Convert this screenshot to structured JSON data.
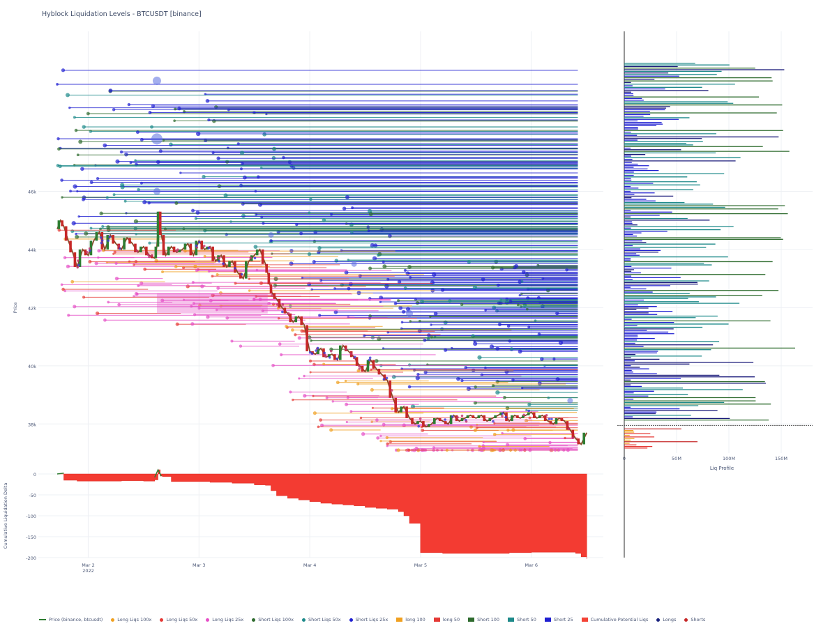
{
  "title": "Hyblock Liquidation Levels - BTCUSDT [binance]",
  "chart_data": [
    {
      "id": "main",
      "type": "line",
      "ylabel": "Price",
      "ylim": [
        37000,
        51500
      ],
      "y_ticks": [
        {
          "v": 38000,
          "label": "38k"
        },
        {
          "v": 40000,
          "label": "40k"
        },
        {
          "v": 42000,
          "label": "42k"
        },
        {
          "v": 44000,
          "label": "44k"
        },
        {
          "v": 46000,
          "label": "46k"
        }
      ],
      "xlim": [
        1.55,
        6.65
      ],
      "x_ticks": [
        {
          "v": 2,
          "label": "Mar 2",
          "sub": "2022"
        },
        {
          "v": 3,
          "label": "Mar 3",
          "sub": ""
        },
        {
          "v": 4,
          "label": "Mar 4",
          "sub": ""
        },
        {
          "v": 5,
          "label": "Mar 5",
          "sub": ""
        },
        {
          "v": 6,
          "label": "Mar 6",
          "sub": ""
        }
      ],
      "price_series": {
        "name": "Price (binance, btcusdt)",
        "x": [
          1.72,
          1.75,
          1.78,
          1.82,
          1.86,
          1.9,
          1.95,
          2.0,
          2.05,
          2.1,
          2.15,
          2.2,
          2.25,
          2.3,
          2.35,
          2.4,
          2.45,
          2.5,
          2.55,
          2.6,
          2.62,
          2.64,
          2.66,
          2.7,
          2.75,
          2.8,
          2.85,
          2.9,
          2.95,
          3.0,
          3.05,
          3.1,
          3.15,
          3.2,
          3.25,
          3.3,
          3.35,
          3.4,
          3.45,
          3.5,
          3.55,
          3.6,
          3.62,
          3.64,
          3.66,
          3.7,
          3.75,
          3.8,
          3.85,
          3.9,
          3.95,
          4.0,
          4.05,
          4.1,
          4.15,
          4.2,
          4.25,
          4.3,
          4.35,
          4.4,
          4.45,
          4.5,
          4.55,
          4.6,
          4.65,
          4.7,
          4.75,
          4.8,
          4.85,
          4.9,
          4.95,
          5.0,
          5.05,
          5.1,
          5.15,
          5.2,
          5.25,
          5.3,
          5.35,
          5.4,
          5.45,
          5.5,
          5.55,
          5.6,
          5.65,
          5.7,
          5.75,
          5.8,
          5.85,
          5.9,
          5.95,
          6.0,
          6.05,
          6.1,
          6.15,
          6.2,
          6.25,
          6.3,
          6.35,
          6.4,
          6.45,
          6.5
        ],
        "y": [
          44700,
          45000,
          44800,
          44300,
          43900,
          43400,
          44000,
          43800,
          44300,
          44600,
          44000,
          44500,
          44200,
          44000,
          44400,
          44200,
          43900,
          44100,
          43800,
          43700,
          44100,
          45300,
          44500,
          43800,
          44100,
          43900,
          44000,
          44200,
          43800,
          44300,
          44000,
          44100,
          43600,
          43800,
          43400,
          43600,
          43200,
          43000,
          43600,
          43800,
          44000,
          43500,
          43200,
          42800,
          42500,
          42300,
          42000,
          41800,
          41500,
          41700,
          41400,
          40500,
          40400,
          40600,
          40300,
          40400,
          40200,
          40700,
          40500,
          40300,
          40000,
          39800,
          40200,
          39900,
          39700,
          39500,
          38900,
          38400,
          38600,
          38200,
          38000,
          38100,
          37900,
          38000,
          38200,
          38100,
          38000,
          38300,
          38100,
          38200,
          38300,
          38200,
          38300,
          38100,
          38200,
          38300,
          38400,
          38100,
          38300,
          38200,
          38300,
          38400,
          38200,
          38300,
          38100,
          38000,
          38200,
          38100,
          37800,
          37500,
          37300,
          37700
        ]
      },
      "annotations": [
        "Long Liqs 100x",
        "Long Liqs 50x",
        "Long Liqs 25x",
        "Short Liqs 100x",
        "Short Liqs 50x",
        "Short Liqs 25x",
        "long 100",
        "long 50",
        "Short 100",
        "Short 50",
        "Short 25"
      ],
      "colors": {
        "price": "#8b4a2b",
        "up": "#2e7d32",
        "down": "#c62828",
        "short25": "#1f1fd1",
        "short50": "#1e8a8a",
        "short100": "#2e6b2e",
        "long25": "#e64fc6",
        "long50": "#e53935",
        "long100": "#f0a020",
        "shorts_dot": "#3b3bd6",
        "longs_dot": "#c0306a"
      }
    },
    {
      "id": "cumulative",
      "type": "area",
      "ylabel": "Cumulative Liquidation Delta",
      "ylim": [
        -200,
        25
      ],
      "y_ticks": [
        {
          "v": 0,
          "label": "0"
        },
        {
          "v": -50,
          "label": "-50"
        },
        {
          "v": -100,
          "label": "-100"
        },
        {
          "v": -150,
          "label": "-150"
        },
        {
          "v": -200,
          "label": "-200"
        }
      ],
      "series": [
        {
          "name": "Cumulative Potential Liqs",
          "x": [
            1.72,
            1.78,
            1.9,
            2.1,
            2.3,
            2.5,
            2.6,
            2.63,
            2.65,
            2.67,
            2.75,
            2.9,
            3.1,
            3.3,
            3.5,
            3.6,
            3.65,
            3.7,
            3.8,
            3.9,
            4.0,
            4.1,
            4.2,
            4.3,
            4.4,
            4.5,
            4.6,
            4.7,
            4.8,
            4.85,
            4.9,
            5.0,
            5.2,
            5.5,
            5.8,
            6.0,
            6.2,
            6.4,
            6.45,
            6.5
          ],
          "y": [
            0,
            -15,
            -17,
            -17,
            -16,
            -17,
            -14,
            10,
            -5,
            -6,
            -18,
            -18,
            -20,
            -22,
            -26,
            -27,
            -40,
            -52,
            -58,
            -62,
            -66,
            -70,
            -72,
            -74,
            -76,
            -80,
            -82,
            -84,
            -90,
            -100,
            -118,
            -188,
            -190,
            -190,
            -188,
            -187,
            -187,
            -190,
            -198,
            -203
          ]
        }
      ]
    },
    {
      "id": "profile",
      "type": "bar",
      "xlabel": "Liq Profile",
      "xlim": [
        0,
        180
      ],
      "x_ticks": [
        {
          "v": 0,
          "label": "0"
        },
        {
          "v": 50,
          "label": "50M"
        },
        {
          "v": 100,
          "label": "100M"
        },
        {
          "v": 150,
          "label": "150M"
        }
      ],
      "current_price": 37950
    }
  ],
  "legend": [
    {
      "label": "Price (binance, btcusdt)",
      "color": "#2e7d32",
      "kind": "line"
    },
    {
      "label": "Long Liqs 100x",
      "color": "#f0a020",
      "kind": "dot"
    },
    {
      "label": "Long Liqs 50x",
      "color": "#e53935",
      "kind": "dot"
    },
    {
      "label": "Long Liqs 25x",
      "color": "#e64fc6",
      "kind": "dot"
    },
    {
      "label": "Short Liqs 100x",
      "color": "#2e6b2e",
      "kind": "dot"
    },
    {
      "label": "Short Liqs 50x",
      "color": "#1e8a8a",
      "kind": "dot"
    },
    {
      "label": "Short Liqs 25x",
      "color": "#1f1fd1",
      "kind": "dot"
    },
    {
      "label": "long 100",
      "color": "#f0a020",
      "kind": "box"
    },
    {
      "label": "long 50",
      "color": "#e53935",
      "kind": "box"
    },
    {
      "label": "Short 100",
      "color": "#2e6b2e",
      "kind": "box"
    },
    {
      "label": "Short 50",
      "color": "#1e8a8a",
      "kind": "box"
    },
    {
      "label": "Short 25",
      "color": "#1f1fd1",
      "kind": "box"
    },
    {
      "label": "Cumulative Potential Liqs",
      "color": "#f44336",
      "kind": "box"
    },
    {
      "label": "Longs",
      "color": "#1a237e",
      "kind": "dot"
    },
    {
      "label": "Shorts",
      "color": "#c62828",
      "kind": "dot"
    }
  ]
}
